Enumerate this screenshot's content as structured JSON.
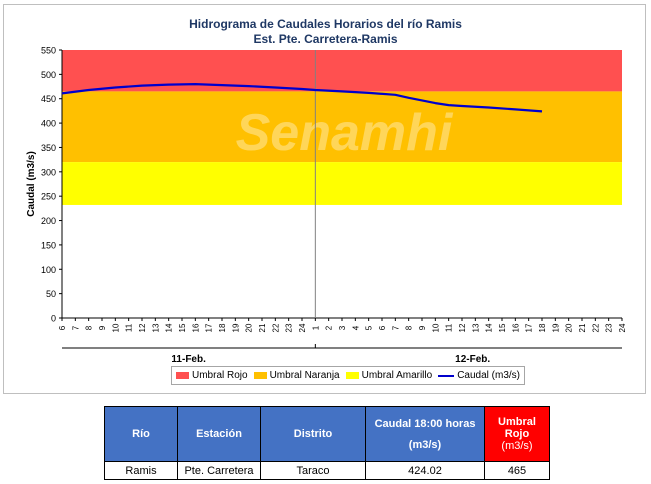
{
  "chart": {
    "title_line1": "Hidrograma de Caudales Horarios del río Ramis",
    "title_line2": "Est. Pte. Carretera-Ramis",
    "watermark": "Senamhi"
  },
  "chart_data": {
    "type": "line",
    "title": "Hidrograma de Caudales Horarios del río Ramis",
    "subtitle": "Est. Pte. Carretera-Ramis",
    "ylabel": "Caudal  (m3/s)",
    "xlabel": "",
    "ylim": [
      0,
      550
    ],
    "yticks": [
      "0",
      "50",
      "100",
      "150",
      "200",
      "250",
      "300",
      "350",
      "400",
      "450",
      "500",
      "550"
    ],
    "xticks": [
      "6",
      "7",
      "8",
      "9",
      "10",
      "11",
      "12",
      "13",
      "14",
      "15",
      "16",
      "17",
      "18",
      "19",
      "20",
      "21",
      "22",
      "23",
      "24",
      "1",
      "2",
      "3",
      "4",
      "5",
      "6",
      "7",
      "8",
      "9",
      "10",
      "11",
      "12",
      "13",
      "14",
      "15",
      "16",
      "17",
      "18",
      "19",
      "20",
      "21",
      "22",
      "23",
      "24"
    ],
    "date_groups": [
      "11-Feb.",
      "12-Feb."
    ],
    "grid": false,
    "legend_position": "bottom",
    "thresholds": [
      {
        "name": "Umbral Rojo",
        "from": 465,
        "to": 550,
        "color": "#ff5050"
      },
      {
        "name": "Umbral Naranja",
        "from": 320,
        "to": 465,
        "color": "#ffc000"
      },
      {
        "name": "Umbral Amarillo",
        "from": 232,
        "to": 320,
        "color": "#ffff00"
      }
    ],
    "series": [
      {
        "name": "Caudal (m3/s)",
        "color": "#0000cc",
        "x": [
          6,
          8,
          10,
          12,
          14,
          16,
          18,
          20,
          22,
          24,
          25,
          27,
          29,
          31,
          32,
          34,
          35,
          36,
          38,
          40,
          42
        ],
        "values": [
          461,
          468,
          473,
          477,
          479,
          480,
          478,
          476,
          473,
          470,
          468,
          465,
          462,
          458,
          452,
          441,
          437,
          435,
          432,
          428,
          424
        ]
      }
    ]
  },
  "legend": {
    "items": [
      {
        "label": "Umbral Rojo",
        "color": "#ff5050",
        "kind": "box"
      },
      {
        "label": "Umbral Naranja",
        "color": "#ffc000",
        "kind": "box"
      },
      {
        "label": "Umbral Amarillo",
        "color": "#ffff00",
        "kind": "box"
      },
      {
        "label": "Caudal (m3/s)",
        "color": "#0000cc",
        "kind": "line"
      }
    ]
  },
  "table": {
    "headers": {
      "rio": "Río",
      "estacion": "Estación",
      "distrito": "Distrito",
      "caudal_line1": "Caudal 18:00 horas",
      "caudal_line2": "(m3/s)",
      "umbral_line1": "Umbral",
      "umbral_line2": "Rojo",
      "umbral_line3": "(m3/s)"
    },
    "row": {
      "rio": "Ramis",
      "estacion": "Pte. Carretera",
      "distrito": "Taraco",
      "caudal": "424.02",
      "umbral": "465"
    },
    "colors": {
      "header": "#4472c4",
      "red_header": "#ff0000"
    }
  }
}
